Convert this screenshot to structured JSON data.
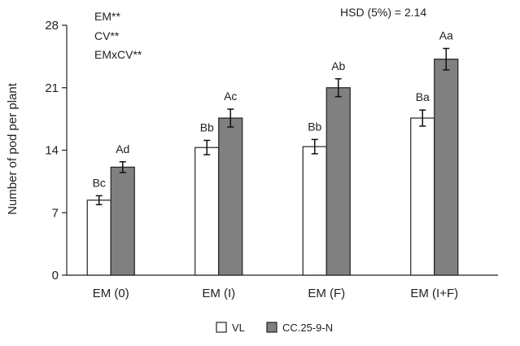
{
  "chart_data": {
    "type": "bar",
    "categories": [
      "EM (0)",
      "EM (I)",
      "EM (F)",
      "EM (I+F)"
    ],
    "series": [
      {
        "name": "VL",
        "color": "#ffffff",
        "values": [
          8.4,
          14.3,
          14.4,
          17.6
        ],
        "errors": [
          0.5,
          0.8,
          0.8,
          0.9
        ],
        "labels": [
          "Bc",
          "Bb",
          "Bb",
          "Ba"
        ]
      },
      {
        "name": "CC.25-9-N",
        "color": "#808080",
        "values": [
          12.1,
          17.6,
          21.0,
          24.2
        ],
        "errors": [
          0.6,
          1.0,
          1.0,
          1.2
        ],
        "labels": [
          "Ad",
          "Ac",
          "Ab",
          "Aa"
        ]
      }
    ],
    "ylabel": "Number of pod per plant",
    "xlabel": "",
    "ylim": [
      0,
      28
    ],
    "yticks": [
      0,
      7,
      14,
      21,
      28
    ],
    "legend_position": "bottom",
    "grid": false,
    "annotations": {
      "significance": [
        "EM**",
        "CV**",
        "EMxCV**"
      ],
      "hsd": "HSD (5%) = 2.14"
    }
  }
}
